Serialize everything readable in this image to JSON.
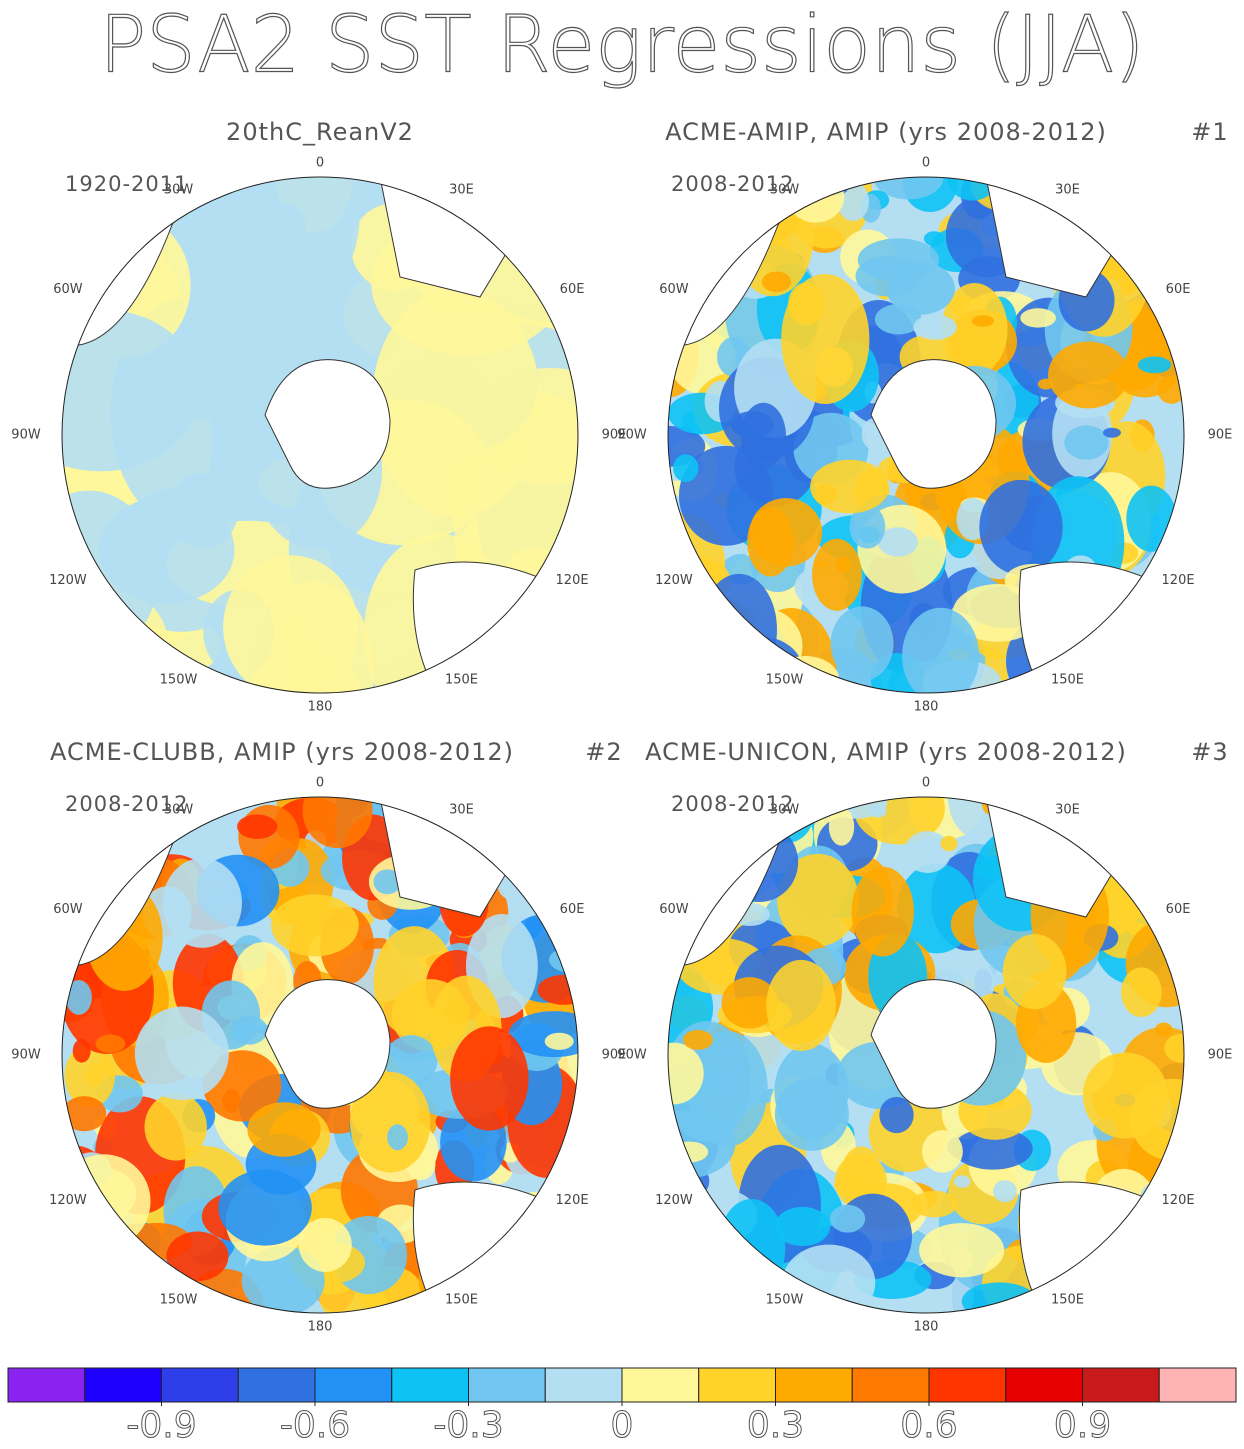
{
  "header": {
    "title": "PSA2 SST Regressions (JJA)"
  },
  "panels": [
    {
      "title": "20thC_ReanV2",
      "period": "1920-2011"
    },
    {
      "title": "ACME-AMIP, AMIP (yrs 2008-2012)",
      "tag": "#1",
      "period": "2008-2012"
    },
    {
      "title": "ACME-CLUBB, AMIP (yrs 2008-2012)",
      "tag": "#2",
      "period": "2008-2012"
    },
    {
      "title": "ACME-UNICON, AMIP (yrs 2008-2012)",
      "tag": "#3",
      "period": "2008-2012"
    }
  ],
  "longitude_labels": [
    "0",
    "30E",
    "60E",
    "90E",
    "120E",
    "150E",
    "180",
    "150W",
    "120W",
    "90W",
    "60W",
    "30W"
  ],
  "colorbar": {
    "colors": [
      "#8a23f0",
      "#1e00ff",
      "#2e3ee8",
      "#3070e0",
      "#2291f5",
      "#0ec2f5",
      "#70c6f0",
      "#b4dff3",
      "#fff79a",
      "#ffd32a",
      "#ffaa00",
      "#ff7800",
      "#ff3500",
      "#e60000",
      "#c81a1a",
      "#ffb3b3"
    ],
    "lim": [
      -1.2,
      1.2
    ],
    "ticks": [
      -0.9,
      -0.6,
      -0.3,
      0,
      0.3,
      0.6,
      0.9
    ]
  }
}
